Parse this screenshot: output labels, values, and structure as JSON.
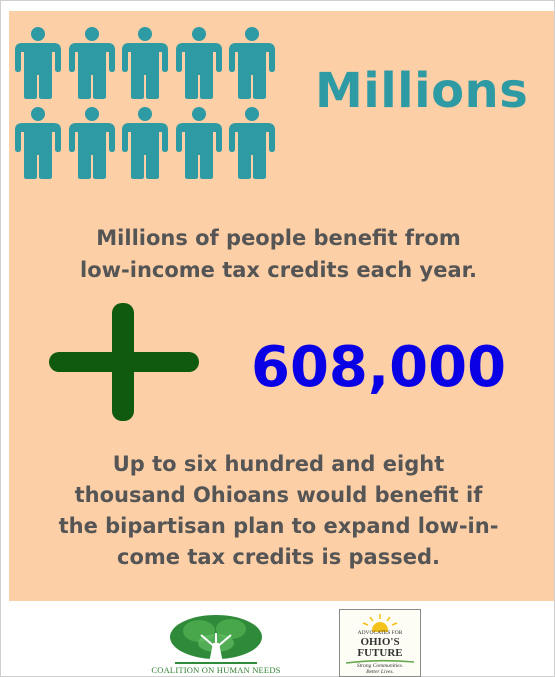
{
  "header": {
    "title": "Millions"
  },
  "intro": {
    "line1": "Millions of people benefit from",
    "line2": "low-income tax credits each year."
  },
  "stat": {
    "value": "608,000"
  },
  "body": {
    "lines": [
      "Up to six hundred and eight",
      "thousand Ohioans would benefit if",
      "the bipartisan plan to expand low-in-",
      "come tax credits is passed."
    ]
  },
  "logos": {
    "chn": {
      "name": "COALITION ON HUMAN NEEDS"
    },
    "aof": {
      "line1": "ADVOCATES FOR",
      "line2": "OHIO'S",
      "line3": "FUTURE",
      "tagline1": "Strong Communities.",
      "tagline2": "Better Lives."
    }
  },
  "colors": {
    "panel": "#fccfa6",
    "teal": "#2e9aa3",
    "number": "#0a00e6",
    "plus": "#0f5a0f",
    "text": "#555555"
  },
  "icons": {
    "people": "person-icon",
    "plus": "plus-icon",
    "tree": "tree-icon",
    "sun": "sun-icon"
  }
}
